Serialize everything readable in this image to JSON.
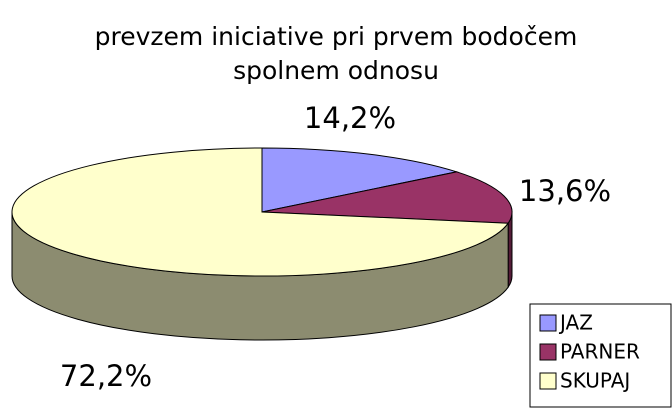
{
  "chart_data": {
    "type": "pie",
    "title": "prevzem iniciative pri prvem bodočem spolnem odnosu",
    "categories": [
      "JAZ",
      "PARNER",
      "SKUPAJ"
    ],
    "values": [
      14.2,
      13.6,
      72.2
    ],
    "value_labels": [
      "14,2%",
      "13,6%",
      "72,2%"
    ],
    "colors": [
      "#9999ff",
      "#993366",
      "#ffffcc"
    ],
    "legend": "right"
  }
}
